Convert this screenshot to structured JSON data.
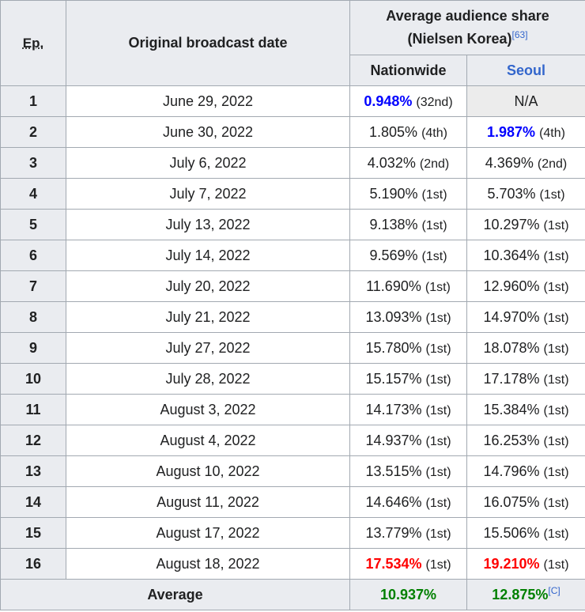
{
  "header": {
    "ep_label": "Ep.",
    "date_label": "Original broadcast date",
    "share_label_line1": "Average audience share",
    "share_label_line2": "(Nielsen Korea)",
    "share_ref": "[63]",
    "nationwide_label": "Nationwide",
    "seoul_label": "Seoul"
  },
  "rows": [
    {
      "ep": "1",
      "date": "June 29, 2022",
      "nat": "0.948%",
      "nat_rank": "(32nd)",
      "seoul": "N/A",
      "seoul_rank": ""
    },
    {
      "ep": "2",
      "date": "June 30, 2022",
      "nat": "1.805%",
      "nat_rank": "(4th)",
      "seoul": "1.987%",
      "seoul_rank": "(4th)"
    },
    {
      "ep": "3",
      "date": "July 6, 2022",
      "nat": "4.032%",
      "nat_rank": "(2nd)",
      "seoul": "4.369%",
      "seoul_rank": "(2nd)"
    },
    {
      "ep": "4",
      "date": "July 7, 2022",
      "nat": "5.190%",
      "nat_rank": "(1st)",
      "seoul": "5.703%",
      "seoul_rank": "(1st)"
    },
    {
      "ep": "5",
      "date": "July 13, 2022",
      "nat": "9.138%",
      "nat_rank": "(1st)",
      "seoul": "10.297%",
      "seoul_rank": "(1st)"
    },
    {
      "ep": "6",
      "date": "July 14, 2022",
      "nat": "9.569%",
      "nat_rank": "(1st)",
      "seoul": "10.364%",
      "seoul_rank": "(1st)"
    },
    {
      "ep": "7",
      "date": "July 20, 2022",
      "nat": "11.690%",
      "nat_rank": "(1st)",
      "seoul": "12.960%",
      "seoul_rank": "(1st)"
    },
    {
      "ep": "8",
      "date": "July 21, 2022",
      "nat": "13.093%",
      "nat_rank": "(1st)",
      "seoul": "14.970%",
      "seoul_rank": "(1st)"
    },
    {
      "ep": "9",
      "date": "July 27, 2022",
      "nat": "15.780%",
      "nat_rank": "(1st)",
      "seoul": "18.078%",
      "seoul_rank": "(1st)"
    },
    {
      "ep": "10",
      "date": "July 28, 2022",
      "nat": "15.157%",
      "nat_rank": "(1st)",
      "seoul": "17.178%",
      "seoul_rank": "(1st)"
    },
    {
      "ep": "11",
      "date": "August 3, 2022",
      "nat": "14.173%",
      "nat_rank": "(1st)",
      "seoul": "15.384%",
      "seoul_rank": "(1st)"
    },
    {
      "ep": "12",
      "date": "August 4, 2022",
      "nat": "14.937%",
      "nat_rank": "(1st)",
      "seoul": "16.253%",
      "seoul_rank": "(1st)"
    },
    {
      "ep": "13",
      "date": "August 10, 2022",
      "nat": "13.515%",
      "nat_rank": "(1st)",
      "seoul": "14.796%",
      "seoul_rank": "(1st)"
    },
    {
      "ep": "14",
      "date": "August 11, 2022",
      "nat": "14.646%",
      "nat_rank": "(1st)",
      "seoul": "16.075%",
      "seoul_rank": "(1st)"
    },
    {
      "ep": "15",
      "date": "August 17, 2022",
      "nat": "13.779%",
      "nat_rank": "(1st)",
      "seoul": "15.506%",
      "seoul_rank": "(1st)"
    },
    {
      "ep": "16",
      "date": "August 18, 2022",
      "nat": "17.534%",
      "nat_rank": "(1st)",
      "seoul": "19.210%",
      "seoul_rank": "(1st)"
    }
  ],
  "average": {
    "label": "Average",
    "nat": "10.937%",
    "seoul": "12.875%",
    "seoul_ref": "[C]"
  },
  "colors": {
    "lowest": "#0000ff",
    "highest": "#ff0000",
    "average": "#008000",
    "header_bg": "#eaecf0",
    "border": "#a2a9b1",
    "link": "#3366cc"
  },
  "legend_semantics": {
    "nat_lowest_row": 1,
    "seoul_lowest_row": 2,
    "highest_row": 16
  }
}
